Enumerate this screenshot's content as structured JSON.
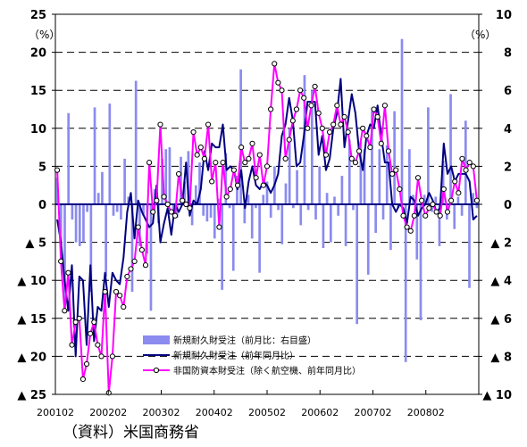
{
  "chart_data": {
    "type": "bar",
    "source": "（資料）米国商務省",
    "left_axis": {
      "unit": "（%）",
      "range": [
        -25,
        25
      ],
      "ticks": [
        {
          "v": 25,
          "label": "25"
        },
        {
          "v": 20,
          "label": "20"
        },
        {
          "v": 15,
          "label": "15"
        },
        {
          "v": 10,
          "label": "10"
        },
        {
          "v": 5,
          "label": "5"
        },
        {
          "v": 0,
          "label": "0"
        },
        {
          "v": -5,
          "label": "▲ 5"
        },
        {
          "v": -10,
          "label": "▲ 10"
        },
        {
          "v": -15,
          "label": "▲ 15"
        },
        {
          "v": -20,
          "label": "▲ 20"
        },
        {
          "v": -25,
          "label": "▲ 25"
        }
      ]
    },
    "right_axis": {
      "unit": "（%）",
      "range": [
        -10,
        10
      ],
      "ticks": [
        {
          "v": 10,
          "label": "10"
        },
        {
          "v": 8,
          "label": "8"
        },
        {
          "v": 6,
          "label": "6"
        },
        {
          "v": 4,
          "label": "4"
        },
        {
          "v": 2,
          "label": "2"
        },
        {
          "v": 0,
          "label": "0"
        },
        {
          "v": -2,
          "label": "▲ 2"
        },
        {
          "v": -4,
          "label": "▲ 4"
        },
        {
          "v": -6,
          "label": "▲ 6"
        },
        {
          "v": -8,
          "label": "▲ 8"
        },
        {
          "v": -10,
          "label": "▲ 10"
        }
      ]
    },
    "x_tick_labels": [
      "200102",
      "200202",
      "200302",
      "200402",
      "200502",
      "200602",
      "200702",
      "200802"
    ],
    "colors": {
      "bar": "#8b8bf0",
      "durable": "#000080",
      "capital": "#ff00ff",
      "marker_fill": "#ffffff",
      "marker_stroke": "#000000"
    },
    "series": [
      {
        "name": "新規耐久財受注（前月比：右目盛）",
        "type": "bar",
        "axis": "right",
        "values": [
          1.4,
          -2.1,
          -5.6,
          4.8,
          -0.8,
          -2.0,
          -2.2,
          -2.0,
          -0.4,
          -4.6,
          5.1,
          0.6,
          1.7,
          -3.8,
          5.3,
          -0.6,
          -0.4,
          -0.8,
          2.4,
          0.4,
          -4.6,
          6.5,
          -2.2,
          -0.6,
          -2.6,
          -5.6,
          0.8,
          -1.0,
          2.4,
          2.9,
          3.0,
          -0.6,
          -0.7,
          2.5,
          1.2,
          2.8,
          -1.1,
          1.0,
          2.2,
          -0.6,
          -0.9,
          -0.7,
          -1.8,
          0.3,
          -4.5,
          2.7,
          -0.2,
          -3.5,
          1.5,
          7.1,
          -1.0,
          0.5,
          -1.8,
          -0.2,
          -3.6,
          0.5,
          1.2,
          -0.7,
          2.0,
          -0.3,
          -2.1,
          1.1,
          4.0,
          -0.2,
          1.8,
          -1.1,
          6.8,
          -0.3,
          6.0,
          -0.8,
          2.0,
          -2.3,
          0.6,
          -2.0,
          0.4,
          -0.6,
          1.5,
          -2.2,
          3.4,
          -0.3,
          -6.3,
          3.3,
          2.9,
          -3.7,
          4.9,
          -1.5,
          2.9,
          -0.8,
          3.1,
          -2.4,
          4.9,
          -0.2,
          8.7,
          -8.3,
          2.9,
          0.5,
          -2.9,
          -6.1,
          0.5,
          5.1,
          -0.4,
          0.4,
          -2.2,
          2.3,
          -0.8,
          5.8,
          -1.3,
          0.4,
          -0.6,
          4.4,
          -4.4,
          0.6,
          -0.2
        ]
      },
      {
        "name": "新規耐久財受注（前年同月比）",
        "type": "line",
        "axis": "left",
        "values": [
          -2.0,
          -5.0,
          -10.0,
          -14.0,
          -8.0,
          -20.0,
          -9.5,
          -10.0,
          -18.5,
          -8.0,
          -18.0,
          -13.5,
          -14.0,
          -9.0,
          -13.5,
          -9.0,
          -10.0,
          -10.5,
          -7.0,
          -1.0,
          1.5,
          -4.5,
          0.5,
          -1.0,
          -2.0,
          -3.0,
          -2.5,
          2.5,
          -5.0,
          -2.5,
          -0.5,
          -4.0,
          0.0,
          -1.0,
          0.0,
          5.5,
          -1.5,
          0.5,
          0.0,
          2.0,
          7.0,
          4.5,
          8.0,
          7.5,
          7.5,
          10.5,
          4.5,
          5.0,
          4.5,
          2.0,
          4.5,
          -0.5,
          3.0,
          5.0,
          2.5,
          2.0,
          3.0,
          2.5,
          1.5,
          2.5,
          4.0,
          9.0,
          10.5,
          14.0,
          11.0,
          5.0,
          5.5,
          9.0,
          13.5,
          13.5,
          13.5,
          6.5,
          9.0,
          4.5,
          6.0,
          10.0,
          12.0,
          16.5,
          7.5,
          11.0,
          14.5,
          12.0,
          7.0,
          4.5,
          9.0,
          10.5,
          10.0,
          13.0,
          9.0,
          5.5,
          5.5,
          0.0,
          -1.0,
          0.0,
          -0.5,
          -2.5,
          1.0,
          0.5,
          -1.5,
          -0.5,
          0.0,
          1.5,
          0.5,
          -1.0,
          -0.5,
          8.0,
          4.0,
          5.0,
          3.0,
          4.0,
          4.0,
          4.0,
          3.0,
          -2.0,
          -1.5
        ]
      },
      {
        "name": "非国防資本財受注（除く航空機、前年同月比）",
        "type": "line",
        "axis": "left",
        "values": [
          4.5,
          -7.5,
          -14.0,
          -9.0,
          -18.5,
          -15.5,
          -15.0,
          -23.0,
          -21.0,
          -17.0,
          -15.5,
          -18.5,
          -20.0,
          -11.5,
          -24.8,
          -20.0,
          -11.5,
          -12.0,
          -13.5,
          -9.5,
          -8.5,
          -7.5,
          -3.0,
          -6.0,
          -8.0,
          5.5,
          -1.0,
          0.5,
          10.5,
          1.0,
          0.0,
          -1.0,
          -1.5,
          4.0,
          0.5,
          0.0,
          -0.5,
          9.5,
          6.5,
          7.5,
          6.0,
          10.5,
          3.0,
          5.5,
          -3.0,
          5.5,
          1.0,
          2.0,
          4.5,
          2.5,
          7.5,
          5.5,
          6.0,
          8.0,
          3.5,
          6.5,
          2.5,
          5.0,
          12.5,
          18.5,
          16.0,
          15.0,
          6.0,
          8.5,
          11.0,
          12.5,
          15.0,
          14.0,
          10.0,
          13.0,
          15.5,
          12.0,
          10.0,
          6.5,
          9.5,
          10.5,
          13.0,
          10.5,
          11.5,
          9.5,
          6.0,
          5.5,
          7.0,
          10.0,
          9.0,
          7.5,
          12.5,
          11.5,
          8.0,
          13.0,
          7.0,
          4.0,
          4.5,
          2.0,
          -1.5,
          -3.0,
          -3.5,
          -1.5,
          3.5,
          0.5,
          -1.5,
          -0.5,
          0.0,
          -1.0,
          -1.5,
          2.0,
          -1.0,
          0.5,
          3.0,
          1.5,
          6.0,
          4.5,
          5.5,
          5.0,
          0.5
        ]
      }
    ]
  }
}
